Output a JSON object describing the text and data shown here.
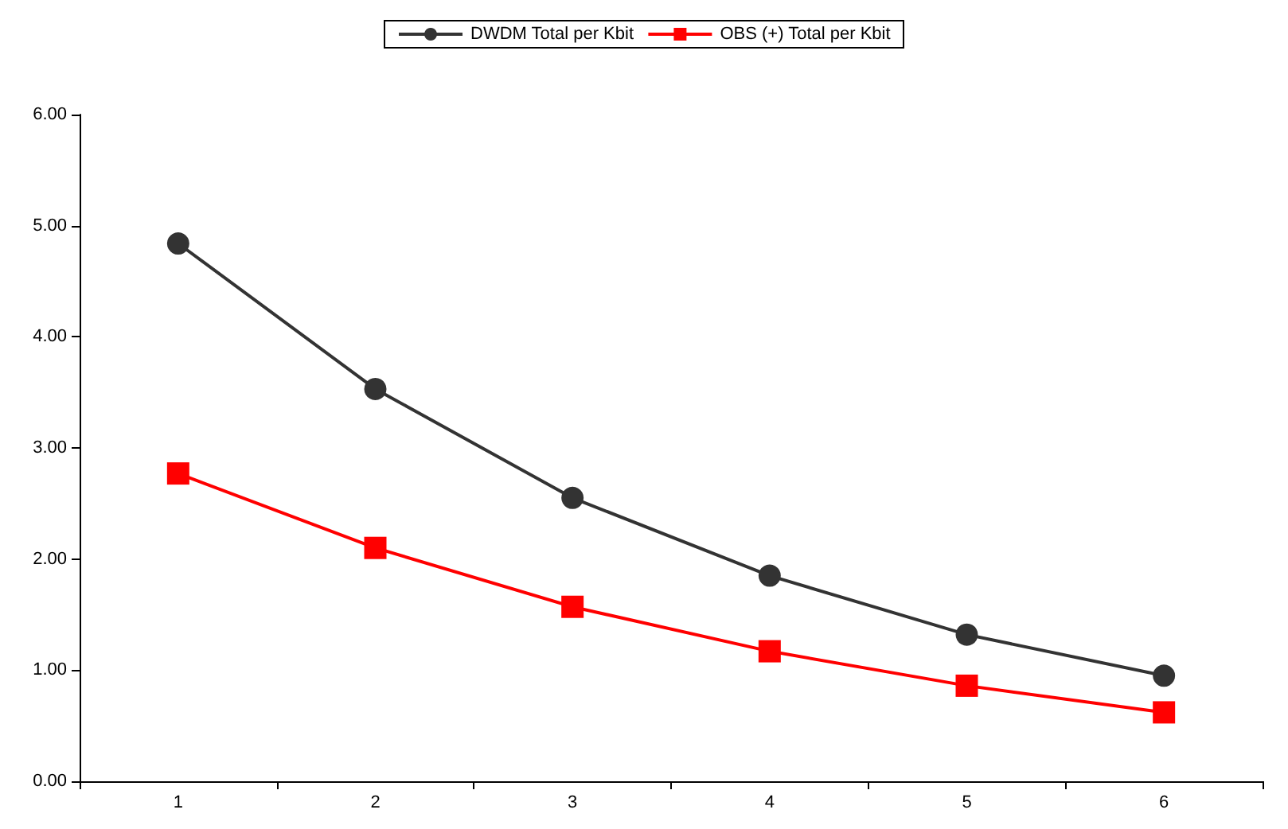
{
  "chart_data": {
    "type": "line",
    "categories": [
      "1",
      "2",
      "3",
      "4",
      "5",
      "6"
    ],
    "series": [
      {
        "name": "DWDM Total per Kbit",
        "color": "#333333",
        "marker": "circle",
        "values": [
          4.84,
          3.53,
          2.55,
          1.85,
          1.32,
          0.95
        ]
      },
      {
        "name": "OBS (+) Total per Kbit",
        "color": "#ff0000",
        "marker": "square",
        "values": [
          2.77,
          2.1,
          1.57,
          1.17,
          0.86,
          0.62
        ]
      }
    ],
    "ylim": [
      0,
      6
    ],
    "yticks": [
      {
        "value": 0,
        "label": "0.00"
      },
      {
        "value": 1,
        "label": "1.00"
      },
      {
        "value": 2,
        "label": "2.00"
      },
      {
        "value": 3,
        "label": "3.00"
      },
      {
        "value": 4,
        "label": "4.00"
      },
      {
        "value": 5,
        "label": "5.00"
      },
      {
        "value": 6,
        "label": "6.00"
      }
    ],
    "grid": false,
    "legend": "top",
    "line_style": "solid"
  }
}
